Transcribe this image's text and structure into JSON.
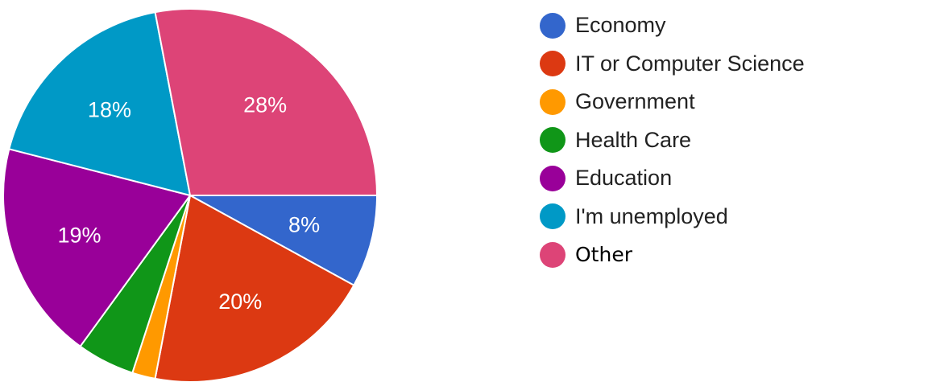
{
  "chart_data": {
    "type": "pie",
    "title": "",
    "legend_position": "right",
    "slices": [
      {
        "label": "Economy",
        "value": 8,
        "display": "8%",
        "color": "#3366CC"
      },
      {
        "label": "IT or Computer Science",
        "value": 20,
        "display": "20%",
        "color": "#DC3912"
      },
      {
        "label": "Government",
        "value": 2,
        "display": "",
        "color": "#FF9900"
      },
      {
        "label": "Health Care",
        "value": 5,
        "display": "",
        "color": "#109618"
      },
      {
        "label": "Education",
        "value": 19,
        "display": "19%",
        "color": "#990099"
      },
      {
        "label": "I'm unemployed",
        "value": 18,
        "display": "18%",
        "color": "#0099C6"
      },
      {
        "label": "Other",
        "value": 28,
        "display": "28%",
        "color": "#DD4477"
      }
    ]
  }
}
